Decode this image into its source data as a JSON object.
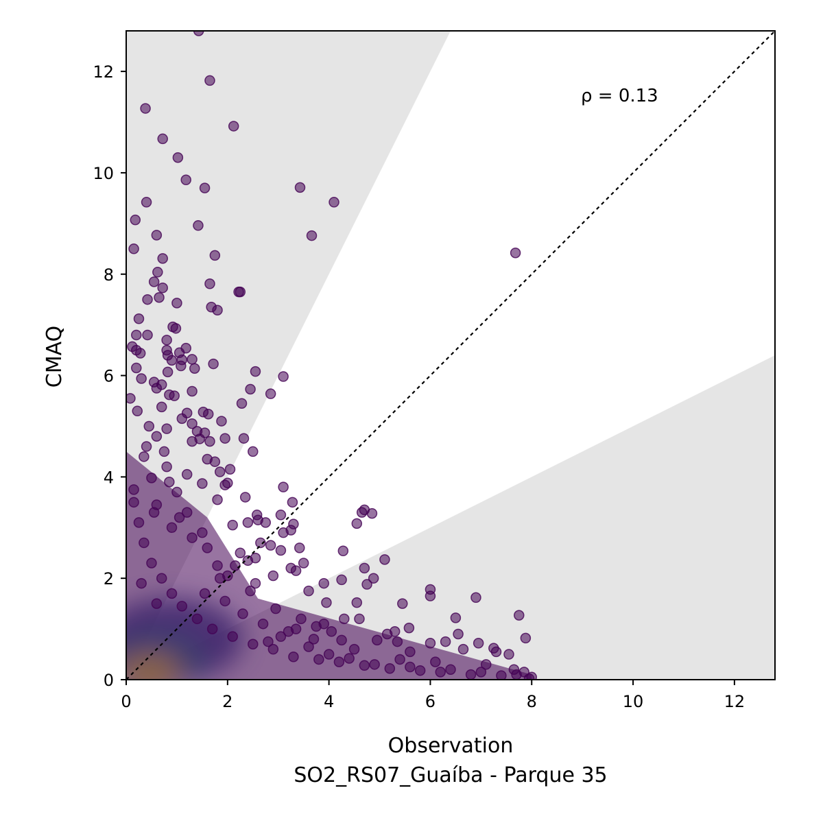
{
  "chart_data": {
    "type": "scatter",
    "xlabel": "Observation",
    "subtitle": "SO2_RS07_Guaíba - Parque 35",
    "ylabel": "CMAQ",
    "xlim": [
      0,
      12.8
    ],
    "ylim": [
      0,
      12.8
    ],
    "x_ticks": [
      "0",
      "2",
      "4",
      "6",
      "8",
      "10",
      "12"
    ],
    "y_ticks": [
      "0",
      "2",
      "4",
      "6",
      "8",
      "10",
      "12"
    ],
    "annotation": "ρ = 0.13",
    "grid": false,
    "reference_line": "1:1 (dotted)",
    "shaded_region_factor": 2,
    "colors": {
      "point": "#440154",
      "point_alpha": 0.55,
      "density_low": "#3b528b",
      "density_mid": "#21918c",
      "density_high": "#fde725",
      "shade": "#e5e5e5"
    },
    "points": [
      [
        1.43,
        12.8
      ],
      [
        1.65,
        11.82
      ],
      [
        0.38,
        11.27
      ],
      [
        2.12,
        10.92
      ],
      [
        0.72,
        10.67
      ],
      [
        1.02,
        10.3
      ],
      [
        1.18,
        9.86
      ],
      [
        1.55,
        9.7
      ],
      [
        3.43,
        9.71
      ],
      [
        4.1,
        9.42
      ],
      [
        0.4,
        9.42
      ],
      [
        0.18,
        9.07
      ],
      [
        1.42,
        8.96
      ],
      [
        3.66,
        8.76
      ],
      [
        0.6,
        8.77
      ],
      [
        0.15,
        8.5
      ],
      [
        7.68,
        8.42
      ],
      [
        1.75,
        8.37
      ],
      [
        0.72,
        8.31
      ],
      [
        0.62,
        8.04
      ],
      [
        0.55,
        7.85
      ],
      [
        1.65,
        7.81
      ],
      [
        0.72,
        7.73
      ],
      [
        2.25,
        7.65
      ],
      [
        2.22,
        7.65
      ],
      [
        0.42,
        7.5
      ],
      [
        0.65,
        7.54
      ],
      [
        1.0,
        7.43
      ],
      [
        1.68,
        7.35
      ],
      [
        1.8,
        7.29
      ],
      [
        0.25,
        7.12
      ],
      [
        0.92,
        6.96
      ],
      [
        0.98,
        6.93
      ],
      [
        0.42,
        6.8
      ],
      [
        0.2,
        6.8
      ],
      [
        0.8,
        6.7
      ],
      [
        0.12,
        6.57
      ],
      [
        0.2,
        6.5
      ],
      [
        0.28,
        6.44
      ],
      [
        0.8,
        6.5
      ],
      [
        0.82,
        6.4
      ],
      [
        1.18,
        6.54
      ],
      [
        1.05,
        6.45
      ],
      [
        1.1,
        6.31
      ],
      [
        1.3,
        6.32
      ],
      [
        0.9,
        6.3
      ],
      [
        1.72,
        6.23
      ],
      [
        0.2,
        6.15
      ],
      [
        1.08,
        6.19
      ],
      [
        1.35,
        6.14
      ],
      [
        0.82,
        6.07
      ],
      [
        2.55,
        6.08
      ],
      [
        3.1,
        5.98
      ],
      [
        0.3,
        5.94
      ],
      [
        0.55,
        5.87
      ],
      [
        0.6,
        5.75
      ],
      [
        0.7,
        5.82
      ],
      [
        2.45,
        5.73
      ],
      [
        1.3,
        5.69
      ],
      [
        2.85,
        5.64
      ],
      [
        0.85,
        5.62
      ],
      [
        0.95,
        5.6
      ],
      [
        0.08,
        5.55
      ],
      [
        2.28,
        5.45
      ],
      [
        0.7,
        5.38
      ],
      [
        0.22,
        5.3
      ],
      [
        1.52,
        5.28
      ],
      [
        1.62,
        5.24
      ],
      [
        1.2,
        5.26
      ],
      [
        1.1,
        5.15
      ],
      [
        1.88,
        5.1
      ],
      [
        1.3,
        5.05
      ],
      [
        0.45,
        5.0
      ],
      [
        0.8,
        4.95
      ],
      [
        1.4,
        4.9
      ],
      [
        1.55,
        4.87
      ],
      [
        0.6,
        4.8
      ],
      [
        1.3,
        4.7
      ],
      [
        1.45,
        4.75
      ],
      [
        1.95,
        4.76
      ],
      [
        2.32,
        4.76
      ],
      [
        1.65,
        4.7
      ],
      [
        2.5,
        4.5
      ],
      [
        0.35,
        4.4
      ],
      [
        1.6,
        4.35
      ],
      [
        1.85,
        4.1
      ],
      [
        2.05,
        4.15
      ],
      [
        1.75,
        4.3
      ],
      [
        0.8,
        4.2
      ],
      [
        1.2,
        4.05
      ],
      [
        0.5,
        3.98
      ],
      [
        1.5,
        3.87
      ],
      [
        2.0,
        3.88
      ],
      [
        1.95,
        3.84
      ],
      [
        3.1,
        3.8
      ],
      [
        0.15,
        3.75
      ],
      [
        2.35,
        3.6
      ],
      [
        3.28,
        3.5
      ],
      [
        1.8,
        3.55
      ],
      [
        0.6,
        3.45
      ],
      [
        1.2,
        3.3
      ],
      [
        4.7,
        3.35
      ],
      [
        4.65,
        3.3
      ],
      [
        4.85,
        3.28
      ],
      [
        2.58,
        3.25
      ],
      [
        3.05,
        3.25
      ],
      [
        2.4,
        3.1
      ],
      [
        2.75,
        3.1
      ],
      [
        2.6,
        3.15
      ],
      [
        4.55,
        3.08
      ],
      [
        2.1,
        3.05
      ],
      [
        3.3,
        3.07
      ],
      [
        0.9,
        3.0
      ],
      [
        1.5,
        2.9
      ],
      [
        3.1,
        2.9
      ],
      [
        3.25,
        2.95
      ],
      [
        2.65,
        2.7
      ],
      [
        2.85,
        2.65
      ],
      [
        3.42,
        2.6
      ],
      [
        3.05,
        2.55
      ],
      [
        2.25,
        2.5
      ],
      [
        4.28,
        2.54
      ],
      [
        2.4,
        2.35
      ],
      [
        2.55,
        2.4
      ],
      [
        1.8,
        2.25
      ],
      [
        3.5,
        2.3
      ],
      [
        3.25,
        2.2
      ],
      [
        5.1,
        2.37
      ],
      [
        3.35,
        2.15
      ],
      [
        4.7,
        2.2
      ],
      [
        2.0,
        2.05
      ],
      [
        2.9,
        2.05
      ],
      [
        4.88,
        2.0
      ],
      [
        4.25,
        1.97
      ],
      [
        3.6,
        1.75
      ],
      [
        3.9,
        1.9
      ],
      [
        6.0,
        1.78
      ],
      [
        6.0,
        1.65
      ],
      [
        6.9,
        1.62
      ],
      [
        4.75,
        1.88
      ],
      [
        2.55,
        1.9
      ],
      [
        4.55,
        1.52
      ],
      [
        5.45,
        1.5
      ],
      [
        3.95,
        1.52
      ],
      [
        7.75,
        1.27
      ],
      [
        4.3,
        1.2
      ],
      [
        3.35,
        1.0
      ],
      [
        3.75,
        1.05
      ],
      [
        4.6,
        1.2
      ],
      [
        5.3,
        0.95
      ],
      [
        5.58,
        1.02
      ],
      [
        6.5,
        1.22
      ],
      [
        5.15,
        0.9
      ],
      [
        6.0,
        0.72
      ],
      [
        6.3,
        0.75
      ],
      [
        6.55,
        0.9
      ],
      [
        6.95,
        0.72
      ],
      [
        7.3,
        0.55
      ],
      [
        7.25,
        0.62
      ],
      [
        7.88,
        0.82
      ],
      [
        6.65,
        0.6
      ],
      [
        7.55,
        0.5
      ],
      [
        5.35,
        0.75
      ],
      [
        4.95,
        0.78
      ],
      [
        5.6,
        0.55
      ],
      [
        4.05,
        0.95
      ],
      [
        4.25,
        0.78
      ],
      [
        3.7,
        0.8
      ],
      [
        3.05,
        0.85
      ],
      [
        2.8,
        0.75
      ],
      [
        4.5,
        0.6
      ],
      [
        5.4,
        0.4
      ],
      [
        6.1,
        0.35
      ],
      [
        7.1,
        0.3
      ],
      [
        7.65,
        0.2
      ],
      [
        7.85,
        0.15
      ],
      [
        8.0,
        0.05
      ],
      [
        7.4,
        0.08
      ],
      [
        6.8,
        0.1
      ],
      [
        6.2,
        0.15
      ],
      [
        5.8,
        0.18
      ],
      [
        5.2,
        0.22
      ],
      [
        4.7,
        0.28
      ],
      [
        4.2,
        0.35
      ],
      [
        3.8,
        0.4
      ],
      [
        3.3,
        0.45
      ],
      [
        2.9,
        0.6
      ],
      [
        2.5,
        0.7
      ],
      [
        2.1,
        0.85
      ],
      [
        1.7,
        1.0
      ],
      [
        1.4,
        1.2
      ],
      [
        1.1,
        1.45
      ],
      [
        0.9,
        1.7
      ],
      [
        0.7,
        2.0
      ],
      [
        0.5,
        2.3
      ],
      [
        0.35,
        2.7
      ],
      [
        0.25,
        3.1
      ],
      [
        0.15,
        3.5
      ],
      [
        1.0,
        3.7
      ],
      [
        0.75,
        4.5
      ],
      [
        0.4,
        4.6
      ],
      [
        1.95,
        1.55
      ],
      [
        2.3,
        1.3
      ],
      [
        2.7,
        1.1
      ],
      [
        3.2,
        0.95
      ],
      [
        3.6,
        0.65
      ],
      [
        4.0,
        0.5
      ],
      [
        4.4,
        0.42
      ],
      [
        4.9,
        0.3
      ],
      [
        5.6,
        0.25
      ],
      [
        6.4,
        0.2
      ],
      [
        7.0,
        0.15
      ],
      [
        7.7,
        0.1
      ],
      [
        7.95,
        0.02
      ],
      [
        1.6,
        2.6
      ],
      [
        1.3,
        2.8
      ],
      [
        1.05,
        3.2
      ],
      [
        0.85,
        3.9
      ],
      [
        0.55,
        3.3
      ],
      [
        2.15,
        2.25
      ],
      [
        2.45,
        1.75
      ],
      [
        2.95,
        1.4
      ],
      [
        3.45,
        1.2
      ],
      [
        3.9,
        1.1
      ],
      [
        1.85,
        2.0
      ],
      [
        1.55,
        1.7
      ],
      [
        0.6,
        1.5
      ],
      [
        0.3,
        1.9
      ]
    ],
    "density_blobs": [
      {
        "x": 0.9,
        "y": 0.8,
        "color": "density_low"
      },
      {
        "x": 0.55,
        "y": 0.35,
        "color": "density_mid"
      },
      {
        "x": 0.45,
        "y": 0.15,
        "color": "density_high"
      }
    ]
  }
}
